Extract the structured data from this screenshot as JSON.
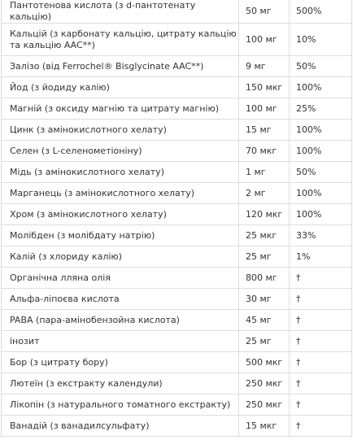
{
  "table": {
    "rows": [
      [
        "Пантотенова кислота (з d-пантотенату кальцію)",
        "50 мг",
        "500%"
      ],
      [
        "Кальцій (з карбонату кальцію, цитрату кальцію та кальцію AAC**)",
        "100 мг",
        "10%"
      ],
      [
        "Залізо (від Ferrochel® Bisglycinate AAC**)",
        "9 мг",
        "50%"
      ],
      [
        "Йод (з йодиду калію)",
        "150 мкг",
        "100%"
      ],
      [
        "Магній (з оксиду магнію та цитрату магнію)",
        "100 мг",
        "25%"
      ],
      [
        "Цинк (з амінокислотного хелату)",
        "15 мг",
        "100%"
      ],
      [
        "Селен (з L-селенометіоніну)",
        "70 мкг",
        "100%"
      ],
      [
        "Мідь (з амінокислотного хелату)",
        "1 мг",
        "50%"
      ],
      [
        "Марганець (з амінокислотного хелату)",
        "2 мг",
        "100%"
      ],
      [
        "Хром (з амінокислотного хелату)",
        "120 мкг",
        "100%"
      ],
      [
        "Молібден (з молібдату натрію)",
        "25 мкг",
        "33%"
      ],
      [
        "Калій (з хлориду калію)",
        "25 мг",
        "1%"
      ],
      [
        "Органічна лляна олія",
        "800 мг",
        "†"
      ],
      [
        "Альфа-ліпоєва кислота",
        "30 мг",
        "†"
      ],
      [
        "PABA (пара-амінобензойна кислота)",
        "45 мг",
        "†"
      ],
      [
        "інозит",
        "25 мг",
        "†"
      ],
      [
        "Бор (з цитрату бору)",
        "500 мкг",
        "†"
      ],
      [
        "Лютеїн (з екстракту календули)",
        "250 мкг",
        "†"
      ],
      [
        "Лікопін (з натурального томатного екстракту)",
        "250 мкг",
        "†"
      ],
      [
        "Ванадій (з ванадилсульфату)",
        "15 мкг",
        "†"
      ]
    ]
  }
}
